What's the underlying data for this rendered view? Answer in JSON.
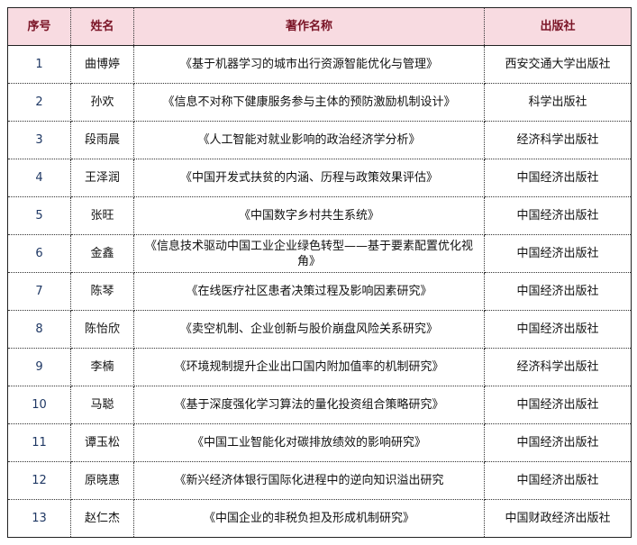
{
  "headers": [
    "序号",
    "姓名",
    "著作名称",
    "出版社"
  ],
  "rows": [
    {
      "no": "1",
      "name": "曲博婷",
      "title": "《基于机器学习的城市出行资源智能优化与管理》",
      "publisher": "西安交通大学出版社"
    },
    {
      "no": "2",
      "name": "孙欢",
      "title": "《信息不对称下健康服务参与主体的预防激励机制设计》",
      "publisher": "科学出版社"
    },
    {
      "no": "3",
      "name": "段雨晨",
      "title": "《人工智能对就业影响的政治经济学分析》",
      "publisher": "经济科学出版社"
    },
    {
      "no": "4",
      "name": "王泽润",
      "title": "《中国开发式扶贫的内涵、历程与政策效果评估》",
      "publisher": "中国经济出版社"
    },
    {
      "no": "5",
      "name": "张旺",
      "title": "《中国数字乡村共生系统》",
      "publisher": "中国经济出版社"
    },
    {
      "no": "6",
      "name": "金鑫",
      "title": "《信息技术驱动中国工业企业绿色转型——基于要素配置优化视角》",
      "publisher": "中国经济出版社"
    },
    {
      "no": "7",
      "name": "陈琴",
      "title": "《在线医疗社区患者决策过程及影响因素研究》",
      "publisher": "中国经济出版社"
    },
    {
      "no": "8",
      "name": "陈怡欣",
      "title": "《卖空机制、企业创新与股价崩盘风险关系研究》",
      "publisher": "中国经济出版社"
    },
    {
      "no": "9",
      "name": "李楠",
      "title": "《环境规制提升企业出口国内附加值率的机制研究》",
      "publisher": "经济科学出版社"
    },
    {
      "no": "10",
      "name": "马聪",
      "title": "《基于深度强化学习算法的量化投资组合策略研究》",
      "publisher": "中国经济出版社"
    },
    {
      "no": "11",
      "name": "谭玉松",
      "title": "《中国工业智能化对碳排放绩效的影响研究》",
      "publisher": "中国经济出版社"
    },
    {
      "no": "12",
      "name": "原晓惠",
      "title": "《新兴经济体银行国际化进程中的逆向知识溢出研究",
      "publisher": "中国经济出版社"
    },
    {
      "no": "13",
      "name": "赵仁杰",
      "title": "《中国企业的非税负担及形成机制研究》",
      "publisher": "中国财政经济出版社"
    }
  ]
}
